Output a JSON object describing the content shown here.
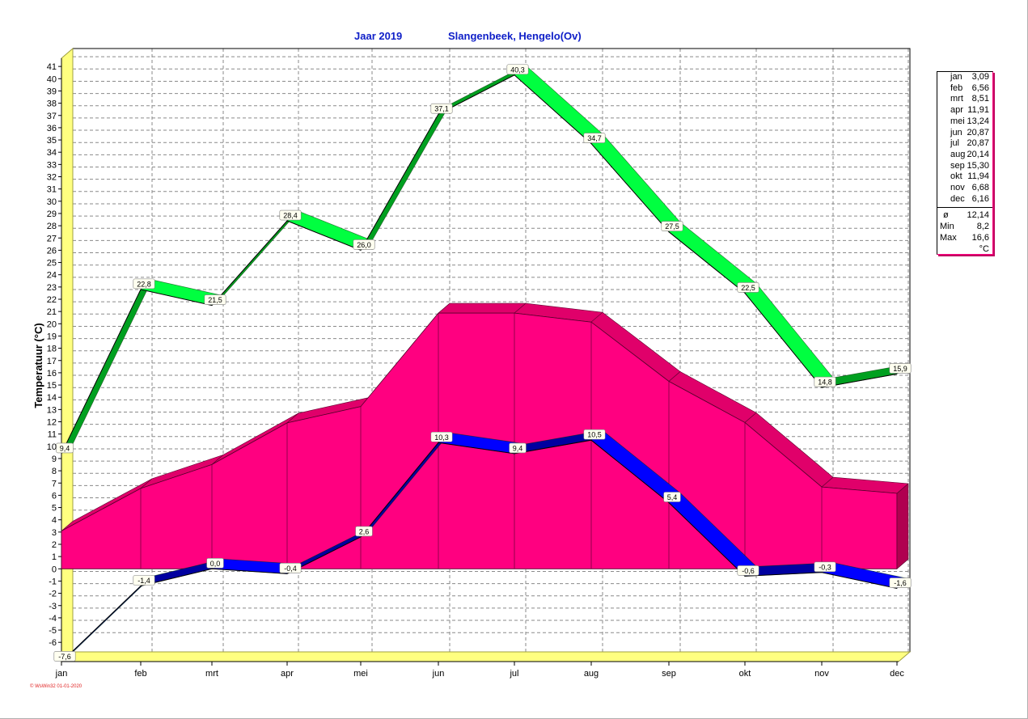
{
  "header": {
    "year_label": "Jaar  2019",
    "station": "Slangenbeek, Hengelo(Ov)"
  },
  "stats": {
    "months": [
      {
        "m": "jan",
        "v": "3,09"
      },
      {
        "m": "feb",
        "v": "6,56"
      },
      {
        "m": "mrt",
        "v": "8,51"
      },
      {
        "m": "apr",
        "v": "11,91"
      },
      {
        "m": "mei",
        "v": "13,24"
      },
      {
        "m": "jun",
        "v": "20,87"
      },
      {
        "m": "jul",
        "v": "20,87"
      },
      {
        "m": "aug",
        "v": "20,14"
      },
      {
        "m": "sep",
        "v": "15,30"
      },
      {
        "m": "okt",
        "v": "11,94"
      },
      {
        "m": "nov",
        "v": "6,68"
      },
      {
        "m": "dec",
        "v": "6,16"
      }
    ],
    "avg_label": "ø",
    "avg": "12,14",
    "min_label": "Min",
    "min": "8,2",
    "max_label": "Max",
    "max": "16,6",
    "unit": "°C"
  },
  "footer": "© WsWin32  01-01-2020",
  "chart_data": {
    "type": "area",
    "ylabel": "Temperatuur  (°C)",
    "ylim": [
      -7,
      41
    ],
    "y_ticks": [
      -6,
      -5,
      -4,
      -3,
      -2,
      -1,
      0,
      1,
      2,
      3,
      4,
      5,
      6,
      7,
      8,
      9,
      10,
      11,
      12,
      13,
      14,
      15,
      16,
      17,
      18,
      19,
      20,
      21,
      22,
      23,
      24,
      25,
      26,
      27,
      28,
      29,
      30,
      31,
      32,
      33,
      34,
      35,
      36,
      37,
      38,
      39,
      40,
      41
    ],
    "categories": [
      "jan",
      "feb",
      "mrt",
      "apr",
      "mei",
      "jun",
      "jul",
      "aug",
      "sep",
      "okt",
      "nov",
      "dec"
    ],
    "grid": true,
    "series": [
      {
        "role": "max",
        "color": "#00ff40",
        "values": [
          9.4,
          22.8,
          21.5,
          28.4,
          26.0,
          37.1,
          40.3,
          34.7,
          27.5,
          22.5,
          14.8,
          15.9
        ],
        "labels": [
          "9,4",
          "22,8",
          "21,5",
          "28,4",
          "26,0",
          "37,1",
          "40,3",
          "34,7",
          "27,5",
          "22,5",
          "14,8",
          "15,9"
        ]
      },
      {
        "role": "mean",
        "color": "#ff0080",
        "values": [
          3.09,
          6.56,
          8.51,
          11.91,
          13.24,
          20.87,
          20.87,
          20.14,
          15.3,
          11.94,
          6.68,
          6.16
        ]
      },
      {
        "role": "min",
        "color": "#0000ff",
        "values": [
          -7.6,
          -1.4,
          0.0,
          -0.4,
          2.6,
          10.3,
          9.4,
          10.5,
          5.4,
          -0.6,
          -0.3,
          -1.6
        ],
        "labels": [
          "-7,6",
          "-1,4",
          "0,0",
          "-0,4",
          "2,6",
          "10,3",
          "9,4",
          "10,5",
          "5,4",
          "-0,6",
          "-0,3",
          "-1,6"
        ]
      }
    ],
    "depth_colors": {
      "wall": "#ffff80",
      "wall_edge": "#a0a040",
      "area_top": "#e0006a",
      "area_side": "#b00050",
      "max_dark": "#00a020",
      "min_dark": "#0000a0"
    }
  }
}
